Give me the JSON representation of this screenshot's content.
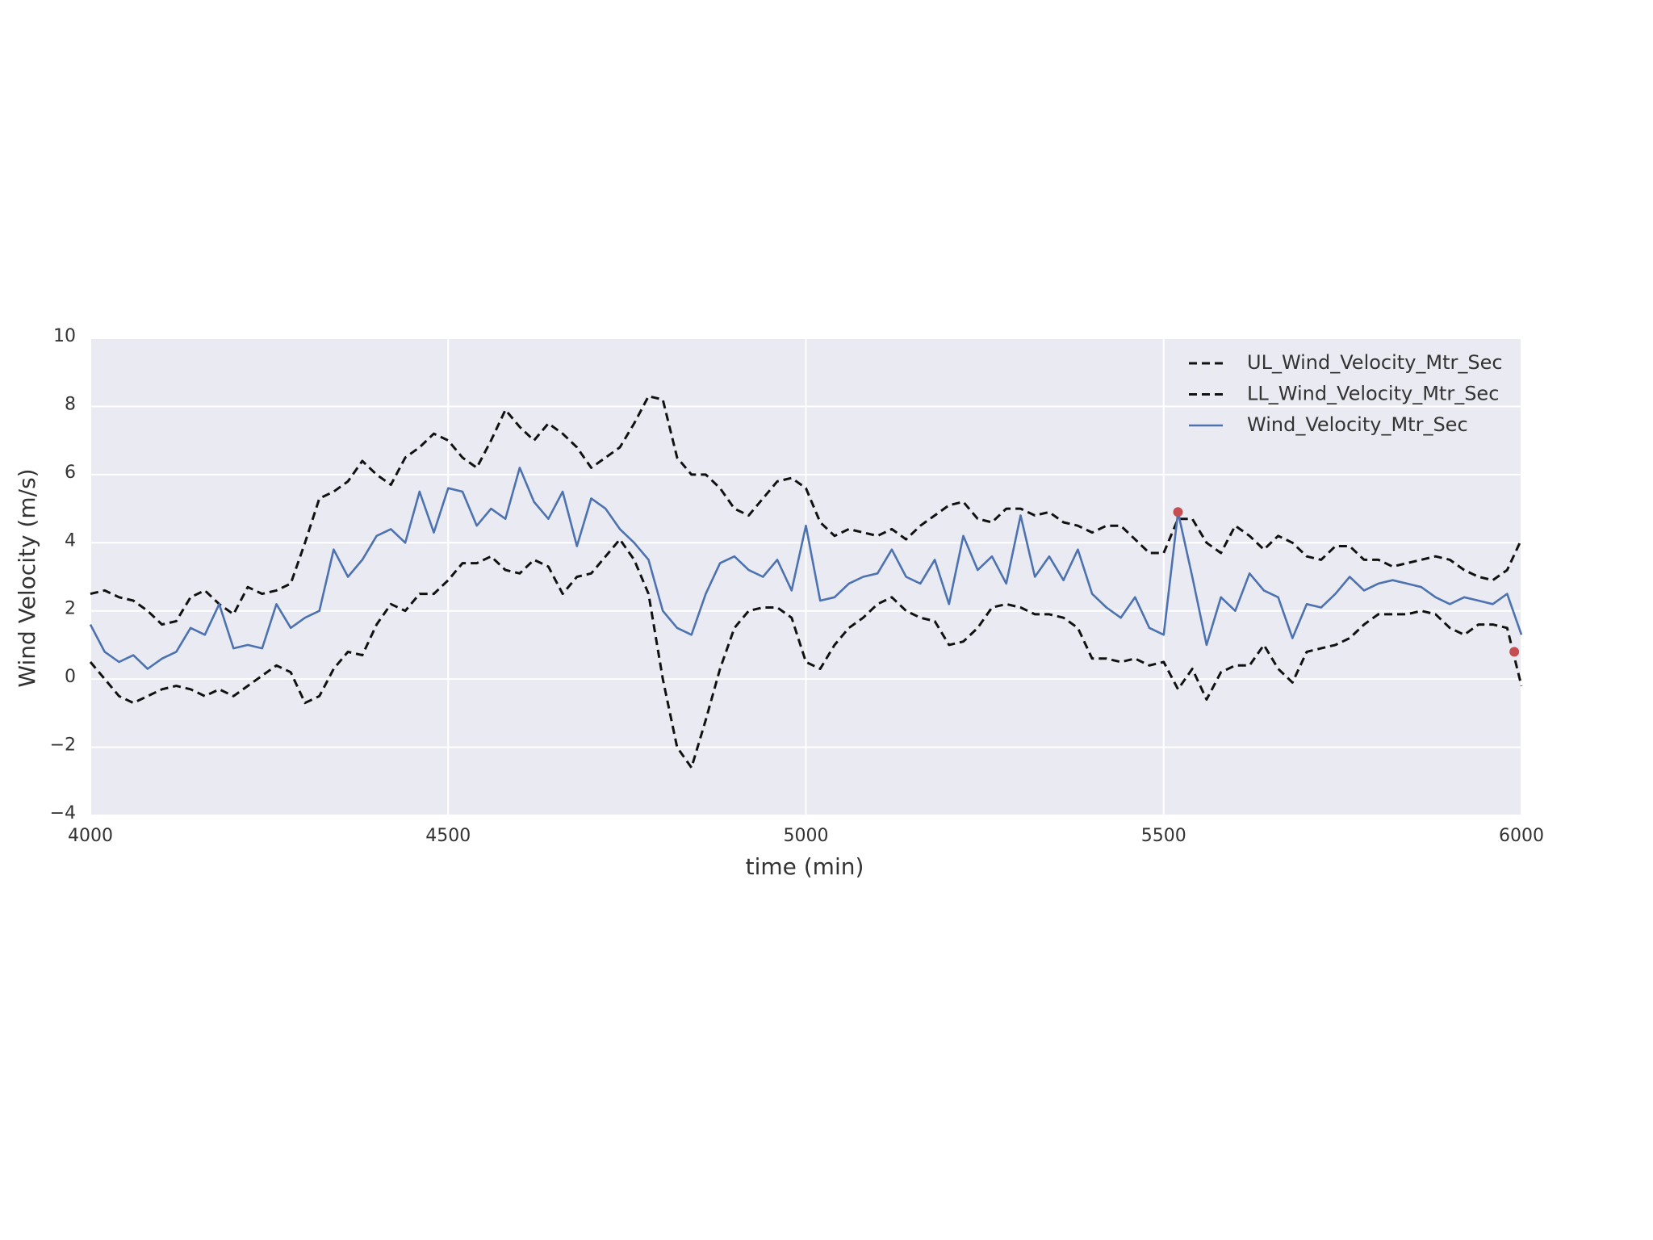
{
  "chart_data": {
    "type": "line",
    "xlabel": "time (min)",
    "ylabel": "Wind Velocity (m/s)",
    "x": [
      4000,
      4020,
      4040,
      4060,
      4080,
      4100,
      4120,
      4140,
      4160,
      4180,
      4200,
      4220,
      4240,
      4260,
      4280,
      4300,
      4320,
      4340,
      4360,
      4380,
      4400,
      4420,
      4440,
      4460,
      4480,
      4500,
      4520,
      4540,
      4560,
      4580,
      4600,
      4620,
      4640,
      4660,
      4680,
      4700,
      4720,
      4740,
      4760,
      4780,
      4800,
      4820,
      4840,
      4860,
      4880,
      4900,
      4920,
      4940,
      4960,
      4980,
      5000,
      5020,
      5040,
      5060,
      5080,
      5100,
      5120,
      5140,
      5160,
      5180,
      5200,
      5220,
      5240,
      5260,
      5280,
      5300,
      5320,
      5340,
      5360,
      5380,
      5400,
      5420,
      5440,
      5460,
      5480,
      5500,
      5520,
      5540,
      5560,
      5580,
      5600,
      5620,
      5640,
      5660,
      5680,
      5700,
      5720,
      5740,
      5760,
      5780,
      5800,
      5820,
      5840,
      5860,
      5880,
      5900,
      5920,
      5940,
      5960,
      5980,
      6000
    ],
    "series": [
      {
        "name": "UL_Wind_Velocity_Mtr_Sec",
        "color": "#111111",
        "linestyle": "dashed",
        "values": [
          2.5,
          2.6,
          2.4,
          2.3,
          2.0,
          1.6,
          1.7,
          2.4,
          2.6,
          2.2,
          1.9,
          2.7,
          2.5,
          2.6,
          2.8,
          4.0,
          5.3,
          5.5,
          5.8,
          6.4,
          6.0,
          5.7,
          6.5,
          6.8,
          7.2,
          7.0,
          6.5,
          6.2,
          7.0,
          7.9,
          7.4,
          7.0,
          7.5,
          7.2,
          6.8,
          6.2,
          6.5,
          6.8,
          7.5,
          8.3,
          8.2,
          6.5,
          6.0,
          6.0,
          5.6,
          5.0,
          4.8,
          5.3,
          5.8,
          5.9,
          5.6,
          4.6,
          4.2,
          4.4,
          4.3,
          4.2,
          4.4,
          4.1,
          4.5,
          4.8,
          5.1,
          5.2,
          4.7,
          4.6,
          5.0,
          5.0,
          4.8,
          4.9,
          4.6,
          4.5,
          4.3,
          4.5,
          4.5,
          4.1,
          3.7,
          3.7,
          4.7,
          4.7,
          4.0,
          3.7,
          4.5,
          4.2,
          3.8,
          4.2,
          4.0,
          3.6,
          3.5,
          3.9,
          3.9,
          3.5,
          3.5,
          3.3,
          3.4,
          3.5,
          3.6,
          3.5,
          3.2,
          3.0,
          2.9,
          3.2,
          4.1
        ]
      },
      {
        "name": "LL_Wind_Velocity_Mtr_Sec",
        "color": "#111111",
        "linestyle": "dashed",
        "values": [
          0.5,
          0.0,
          -0.5,
          -0.7,
          -0.5,
          -0.3,
          -0.2,
          -0.3,
          -0.5,
          -0.3,
          -0.5,
          -0.2,
          0.1,
          0.4,
          0.2,
          -0.7,
          -0.5,
          0.3,
          0.8,
          0.7,
          1.6,
          2.2,
          2.0,
          2.5,
          2.5,
          2.9,
          3.4,
          3.4,
          3.6,
          3.2,
          3.1,
          3.5,
          3.3,
          2.5,
          3.0,
          3.1,
          3.6,
          4.1,
          3.5,
          2.5,
          0.0,
          -2.0,
          -2.6,
          -1.2,
          0.3,
          1.5,
          2.0,
          2.1,
          2.1,
          1.8,
          0.5,
          0.3,
          1.0,
          1.5,
          1.8,
          2.2,
          2.4,
          2.0,
          1.8,
          1.7,
          1.0,
          1.1,
          1.5,
          2.1,
          2.2,
          2.1,
          1.9,
          1.9,
          1.8,
          1.5,
          0.6,
          0.6,
          0.5,
          0.6,
          0.4,
          0.5,
          -0.3,
          0.3,
          -0.6,
          0.2,
          0.4,
          0.4,
          1.0,
          0.3,
          -0.1,
          0.8,
          0.9,
          1.0,
          1.2,
          1.6,
          1.9,
          1.9,
          1.9,
          2.0,
          1.9,
          1.5,
          1.3,
          1.6,
          1.6,
          1.5,
          -0.2
        ]
      },
      {
        "name": "Wind_Velocity_Mtr_Sec",
        "color": "#4c72b0",
        "linestyle": "solid",
        "values": [
          1.6,
          0.8,
          0.5,
          0.7,
          0.3,
          0.6,
          0.8,
          1.5,
          1.3,
          2.2,
          0.9,
          1.0,
          0.9,
          2.2,
          1.5,
          1.8,
          2.0,
          3.8,
          3.0,
          3.5,
          4.2,
          4.4,
          4.0,
          5.5,
          4.3,
          5.6,
          5.5,
          4.5,
          5.0,
          4.7,
          6.2,
          5.2,
          4.7,
          5.5,
          3.9,
          5.3,
          5.0,
          4.4,
          4.0,
          3.5,
          2.0,
          1.5,
          1.3,
          2.5,
          3.4,
          3.6,
          3.2,
          3.0,
          3.5,
          2.6,
          4.5,
          2.3,
          2.4,
          2.8,
          3.0,
          3.1,
          3.8,
          3.0,
          2.8,
          3.5,
          2.2,
          4.2,
          3.2,
          3.6,
          2.8,
          4.8,
          3.0,
          3.6,
          2.9,
          3.8,
          2.5,
          2.1,
          1.8,
          2.4,
          1.5,
          1.3,
          4.9,
          3.0,
          1.0,
          2.4,
          2.0,
          3.1,
          2.6,
          2.4,
          1.2,
          2.2,
          2.1,
          2.5,
          3.0,
          2.6,
          2.8,
          2.9,
          2.8,
          2.7,
          2.4,
          2.2,
          2.4,
          2.3,
          2.2,
          2.5,
          1.3
        ]
      }
    ],
    "anomalies": {
      "x": [
        5520,
        5990
      ],
      "values": [
        4.9,
        0.8
      ],
      "color": "#c44e52"
    },
    "xlim": [
      4000,
      6000
    ],
    "xticks": [
      4000,
      4500,
      5000,
      5500,
      6000
    ],
    "ylim": [
      -4,
      10
    ],
    "yticks": [
      {
        "value": -4,
        "label": "−4"
      },
      {
        "value": -2,
        "label": "−2"
      },
      0,
      2,
      4,
      6,
      8,
      10
    ],
    "grid": true,
    "legend": "upper right",
    "background": "#eaeaf2"
  }
}
